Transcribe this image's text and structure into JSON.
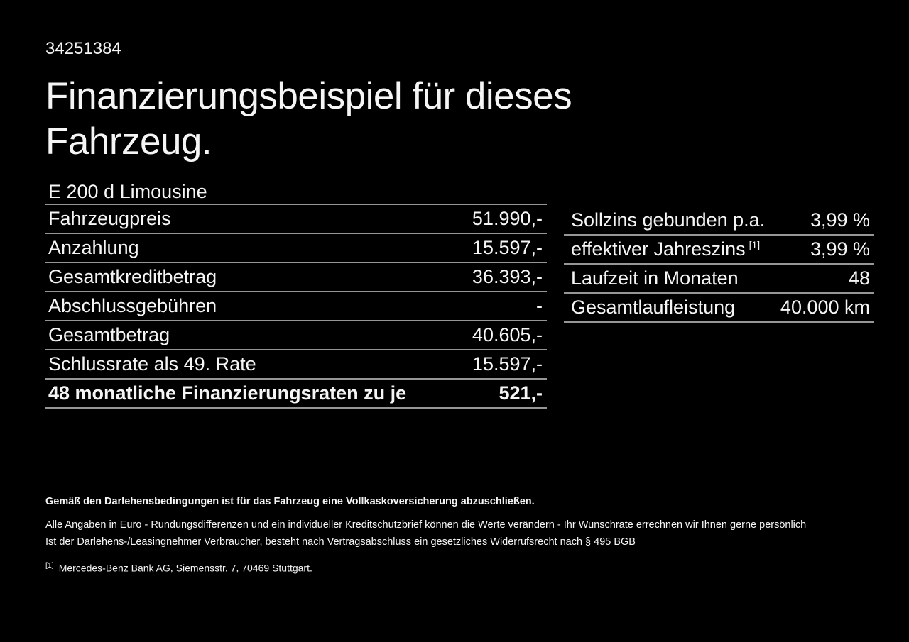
{
  "colors": {
    "background": "#000000",
    "text": "#f5f5f5",
    "divider": "#969696"
  },
  "header": {
    "vehicle_id": "34251384",
    "title": "Finanzierungsbeispiel für dieses Fahrzeug.",
    "model": "E 200 d Limousine"
  },
  "finance_table": {
    "rows": [
      {
        "label": "Fahrzeugpreis",
        "value": "51.990,-"
      },
      {
        "label": "Anzahlung",
        "value": "15.597,-"
      },
      {
        "label": "Gesamtkreditbetrag",
        "value": "36.393,-"
      },
      {
        "label": "Abschlussgebühren",
        "value": "-"
      },
      {
        "label": "Gesamtbetrag",
        "value": "40.605,-"
      },
      {
        "label": "Schlussrate als 49. Rate",
        "value": "15.597,-"
      },
      {
        "label": "48 monatliche Finanzierungsraten zu je",
        "value": "521,-",
        "bold": true
      }
    ]
  },
  "conditions_table": {
    "rows": [
      {
        "label": "Sollzins gebunden p.a.",
        "value": "3,99 %"
      },
      {
        "label": "effektiver Jahreszins",
        "label_sup": "[1]",
        "value": "3,99 %"
      },
      {
        "label": "Laufzeit in Monaten",
        "value": "48"
      },
      {
        "label": "Gesamtlaufleistung",
        "value": "40.000 km"
      }
    ]
  },
  "footer": {
    "bold_note": "Gemäß den Darlehensbedingungen ist für das Fahrzeug eine Vollkaskoversicherung abzuschließen.",
    "note_line1": "Alle Angaben in Euro - Rundungsdifferenzen und ein individueller Kreditschutzbrief können die Werte verändern - Ihr Wunschrate errechnen wir Ihnen gerne persönlich",
    "note_line2": "Ist der Darlehens-/Leasingnehmer Verbraucher, besteht nach Vertragsabschluss ein gesetzliches Widerrufsrecht nach § 495 BGB",
    "footnote_marker": "[1]",
    "footnote_text": "Mercedes-Benz Bank AG, Siemensstr. 7, 70469 Stuttgart."
  }
}
